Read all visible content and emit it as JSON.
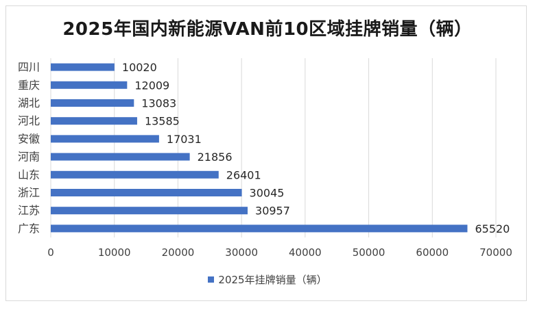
{
  "chart_data": {
    "type": "bar",
    "orientation": "horizontal",
    "title": "2025年国内新能源VAN前10区域挂牌销量（辆）",
    "categories": [
      "四川",
      "重庆",
      "湖北",
      "河北",
      "安徽",
      "河南",
      "山东",
      "浙江",
      "江苏",
      "广东"
    ],
    "series": [
      {
        "name": "2025年挂牌销量（辆）",
        "values": [
          10020,
          12009,
          13083,
          13585,
          17031,
          21856,
          26401,
          30045,
          30957,
          65520
        ],
        "color": "#4472c4"
      }
    ],
    "xlim": [
      0,
      70000
    ],
    "xticks": [
      0,
      10000,
      20000,
      30000,
      40000,
      50000,
      60000,
      70000
    ],
    "grid": true,
    "legend": "bottom"
  }
}
